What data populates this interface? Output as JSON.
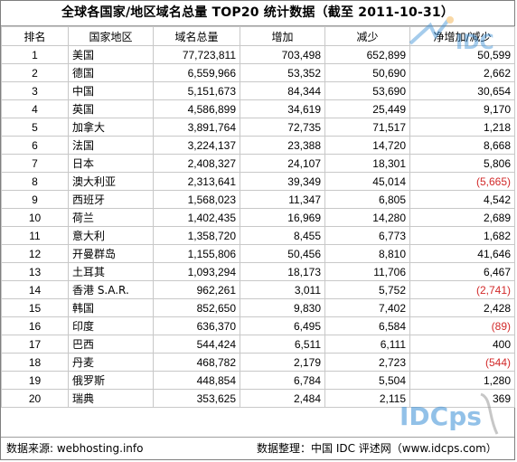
{
  "title": "全球各国家/地区域名总量 TOP20 统计数据（截至 2011-10-31）",
  "headers": [
    "排名",
    "国家地区",
    "域名总量",
    "增加",
    "减少",
    "净增加/减少"
  ],
  "rows": [
    {
      "rank": "1",
      "country": "美国",
      "total": "77,723,811",
      "increase": "703,498",
      "decrease": "652,899",
      "net": "50,599",
      "negative": false
    },
    {
      "rank": "2",
      "country": "德国",
      "total": "6,559,966",
      "increase": "53,352",
      "decrease": "50,690",
      "net": "2,662",
      "negative": false
    },
    {
      "rank": "3",
      "country": "中国",
      "total": "5,151,673",
      "increase": "84,344",
      "decrease": "53,690",
      "net": "30,654",
      "negative": false
    },
    {
      "rank": "4",
      "country": "英国",
      "total": "4,586,899",
      "increase": "34,619",
      "decrease": "25,449",
      "net": "9,170",
      "negative": false
    },
    {
      "rank": "5",
      "country": "加拿大",
      "total": "3,891,764",
      "increase": "72,735",
      "decrease": "71,517",
      "net": "1,218",
      "negative": false
    },
    {
      "rank": "6",
      "country": "法国",
      "total": "3,224,137",
      "increase": "23,388",
      "decrease": "14,720",
      "net": "8,668",
      "negative": false
    },
    {
      "rank": "7",
      "country": "日本",
      "total": "2,408,327",
      "increase": "24,107",
      "decrease": "18,301",
      "net": "5,806",
      "negative": false
    },
    {
      "rank": "8",
      "country": "澳大利亚",
      "total": "2,313,641",
      "increase": "39,349",
      "decrease": "45,014",
      "net": "(5,665)",
      "negative": true
    },
    {
      "rank": "9",
      "country": "西班牙",
      "total": "1,568,023",
      "increase": "11,347",
      "decrease": "6,805",
      "net": "4,542",
      "negative": false
    },
    {
      "rank": "10",
      "country": "荷兰",
      "total": "1,402,435",
      "increase": "16,969",
      "decrease": "14,280",
      "net": "2,689",
      "negative": false
    },
    {
      "rank": "11",
      "country": "意大利",
      "total": "1,358,720",
      "increase": "8,455",
      "decrease": "6,773",
      "net": "1,682",
      "negative": false
    },
    {
      "rank": "12",
      "country": "开曼群岛",
      "total": "1,155,806",
      "increase": "50,456",
      "decrease": "8,810",
      "net": "41,646",
      "negative": false
    },
    {
      "rank": "13",
      "country": "土耳其",
      "total": "1,093,294",
      "increase": "18,173",
      "decrease": "11,706",
      "net": "6,467",
      "negative": false
    },
    {
      "rank": "14",
      "country": "香港 S.A.R.",
      "total": "962,261",
      "increase": "3,011",
      "decrease": "5,752",
      "net": "(2,741)",
      "negative": true
    },
    {
      "rank": "15",
      "country": "韩国",
      "total": "852,650",
      "increase": "9,830",
      "decrease": "7,402",
      "net": "2,428",
      "negative": false
    },
    {
      "rank": "16",
      "country": "印度",
      "total": "636,370",
      "increase": "6,495",
      "decrease": "6,584",
      "net": "(89)",
      "negative": true
    },
    {
      "rank": "17",
      "country": "巴西",
      "total": "544,424",
      "increase": "6,511",
      "decrease": "6,111",
      "net": "400",
      "negative": false
    },
    {
      "rank": "18",
      "country": "丹麦",
      "total": "468,782",
      "increase": "2,179",
      "decrease": "2,723",
      "net": "(544)",
      "negative": true
    },
    {
      "rank": "19",
      "country": "俄罗斯",
      "total": "448,854",
      "increase": "6,784",
      "decrease": "5,504",
      "net": "1,280",
      "negative": false
    },
    {
      "rank": "20",
      "country": "瑞典",
      "total": "353,625",
      "increase": "2,484",
      "decrease": "2,115",
      "net": "369",
      "negative": false
    }
  ],
  "footer": {
    "source": "数据来源: webhosting.info",
    "organizer": "数据整理：中国 IDC 评述网（www.idcps.com）"
  },
  "watermark": {
    "top_text": "IDC",
    "bottom_text": "IDCps"
  },
  "colors": {
    "negative": "#d22a2a",
    "grid": "#c8c8c8",
    "watermark_blue": "#3a8fd6",
    "watermark_orange": "#f2a93b"
  }
}
